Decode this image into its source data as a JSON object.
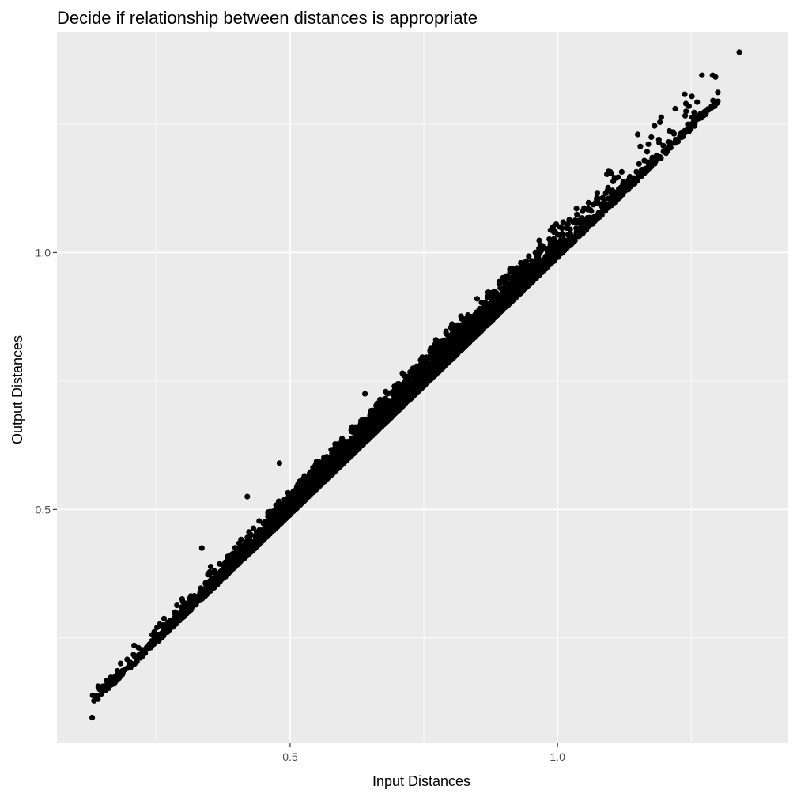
{
  "chart_data": {
    "type": "scatter",
    "title": "Decide if relationship between distances is appropriate",
    "xlabel": "Input Distances",
    "ylabel": "Output Distances",
    "xlim": [
      0.064,
      1.43
    ],
    "ylim": [
      0.045,
      1.43
    ],
    "x_ticks": [
      0.5,
      1.0
    ],
    "x_tick_labels": [
      "0.5",
      "1.0"
    ],
    "x_minor_ticks": [
      0.25,
      0.75,
      1.25
    ],
    "y_ticks": [
      0.5,
      1.0
    ],
    "y_tick_labels": [
      "0.5",
      "1.0"
    ],
    "y_minor_ticks": [
      0.25,
      0.75,
      1.25
    ],
    "grid": true,
    "background": "#ebebeb",
    "grid_color": "#ffffff",
    "point_color": "#000000",
    "n_points_estimate": 8000,
    "relationship": {
      "form": "y ≈ x",
      "x_range": [
        0.13,
        1.4
      ],
      "upper_deviation_max": 0.05,
      "lower_deviation_max": 0.01
    },
    "extreme_points": [
      {
        "x": 0.13,
        "y": 0.095
      },
      {
        "x": 1.27,
        "y": 1.345
      },
      {
        "x": 1.29,
        "y": 1.345
      },
      {
        "x": 1.34,
        "y": 1.39
      },
      {
        "x": 1.22,
        "y": 1.28
      },
      {
        "x": 1.24,
        "y": 1.29
      },
      {
        "x": 1.15,
        "y": 1.23
      },
      {
        "x": 0.335,
        "y": 0.425
      },
      {
        "x": 0.42,
        "y": 0.525
      },
      {
        "x": 0.48,
        "y": 0.59
      },
      {
        "x": 0.64,
        "y": 0.725
      },
      {
        "x": 0.71,
        "y": 0.765
      }
    ]
  }
}
